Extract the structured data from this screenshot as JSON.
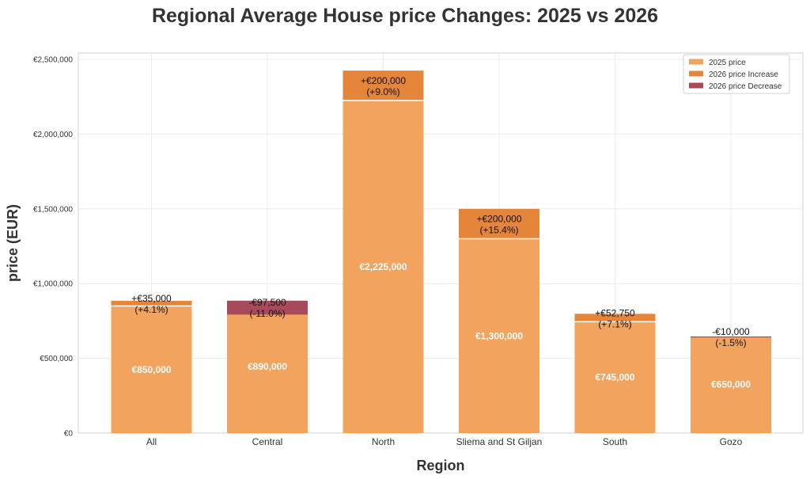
{
  "chart_data": {
    "type": "bar",
    "stacked": true,
    "title": "Regional Average House price Changes: 2025 vs 2026",
    "xlabel": "Region",
    "ylabel": "price (EUR)",
    "ylim": [
      0,
      2500000
    ],
    "yticks": [
      0,
      500000,
      1000000,
      1500000,
      2000000,
      2500000
    ],
    "ytick_labels": [
      "€0",
      "€500,000",
      "€1,000,000",
      "€1,500,000",
      "€2,000,000",
      "€2,500,000"
    ],
    "grid": true,
    "legend_position": "top-right",
    "categories": [
      "All",
      "Central",
      "North",
      "Sliema and St Giljan",
      "South",
      "Gozo"
    ],
    "series": [
      {
        "name": "2025 price",
        "color": "#F2A35E",
        "values": [
          850000,
          890000,
          2225000,
          1300000,
          745000,
          650000
        ]
      },
      {
        "name": "2026 price Increase",
        "color": "#E5853A",
        "values": [
          35000,
          0,
          200000,
          200000,
          52750,
          0
        ]
      },
      {
        "name": "2026 price Decrease",
        "color": "#A94A5A",
        "values": [
          0,
          97500,
          0,
          0,
          0,
          10000
        ]
      }
    ],
    "base_labels": [
      "€850,000",
      "€890,000",
      "€2,225,000",
      "€1,300,000",
      "€745,000",
      "€650,000"
    ],
    "change_labels": [
      [
        "+€35,000",
        "(+4.1%)"
      ],
      [
        "-€97,500",
        "(-11.0%)"
      ],
      [
        "+€200,000",
        "(+9.0%)"
      ],
      [
        "+€200,000",
        "(+15.4%)"
      ],
      [
        "+€52,750",
        "(+7.1%)"
      ],
      [
        "-€10,000",
        "(-1.5%)"
      ]
    ]
  }
}
